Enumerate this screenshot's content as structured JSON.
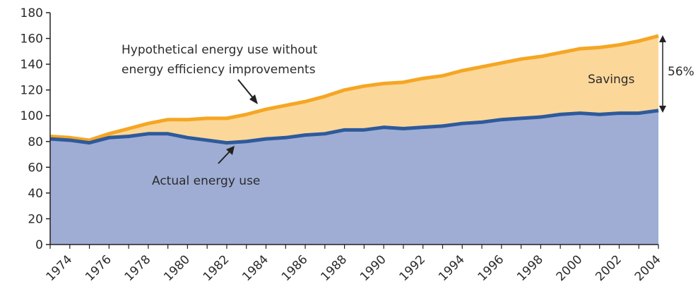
{
  "chart_data": {
    "type": "area",
    "x": [
      1973,
      1974,
      1975,
      1976,
      1977,
      1978,
      1979,
      1980,
      1981,
      1982,
      1983,
      1984,
      1985,
      1986,
      1987,
      1988,
      1989,
      1990,
      1991,
      1992,
      1993,
      1994,
      1995,
      1996,
      1997,
      1998,
      1999,
      2000,
      2001,
      2002,
      2003,
      2004
    ],
    "series": [
      {
        "name": "Hypothetical energy use without energy efficiency improvements",
        "values": [
          84,
          83,
          81,
          86,
          90,
          94,
          97,
          97,
          98,
          98,
          101,
          105,
          108,
          111,
          115,
          120,
          123,
          125,
          126,
          129,
          131,
          135,
          138,
          141,
          144,
          146,
          149,
          152,
          153,
          155,
          158,
          162
        ],
        "color": "#f5a623",
        "fill": "#fcd79a"
      },
      {
        "name": "Actual energy use",
        "values": [
          82,
          81,
          79,
          83,
          84,
          86,
          86,
          83,
          81,
          79,
          80,
          82,
          83,
          85,
          86,
          89,
          89,
          91,
          90,
          91,
          92,
          94,
          95,
          97,
          98,
          99,
          101,
          102,
          101,
          102,
          102,
          104
        ],
        "color": "#2e5a9c",
        "fill": "#9fadd4"
      }
    ],
    "ylim": [
      0,
      180
    ],
    "yticks": [
      0,
      20,
      40,
      60,
      80,
      100,
      120,
      140,
      160,
      180
    ],
    "xticks": [
      1974,
      1976,
      1978,
      1980,
      1982,
      1984,
      1986,
      1988,
      1990,
      1992,
      1994,
      1996,
      1998,
      2000,
      2002,
      2004
    ],
    "annotations": {
      "hypothetical_line1": "Hypothetical energy use without",
      "hypothetical_line2": "energy efficiency improvements",
      "actual": "Actual energy use",
      "savings": "Savings",
      "savings_pct": "56%"
    }
  }
}
